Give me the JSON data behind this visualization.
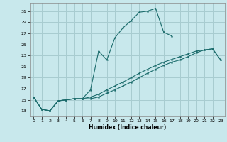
{
  "xlabel": "Humidex (Indice chaleur)",
  "xlim": [
    -0.5,
    23.5
  ],
  "ylim": [
    12.0,
    32.5
  ],
  "yticks": [
    13,
    15,
    17,
    19,
    21,
    23,
    25,
    27,
    29,
    31
  ],
  "xticks": [
    0,
    1,
    2,
    3,
    4,
    5,
    6,
    7,
    8,
    9,
    10,
    11,
    12,
    13,
    14,
    15,
    16,
    17,
    18,
    19,
    20,
    21,
    22,
    23
  ],
  "bg_color": "#c8e8ec",
  "grid_color": "#a8ccd0",
  "line_color": "#1a6b6b",
  "line1_x": [
    0,
    1,
    2,
    3,
    4,
    5,
    6,
    7,
    8,
    9,
    10,
    11,
    12,
    13,
    14,
    15,
    16,
    17,
    18,
    19,
    20,
    21,
    22,
    23
  ],
  "line1_y": [
    15.5,
    13.3,
    13.0,
    14.8,
    15.0,
    15.2,
    15.2,
    16.8,
    23.8,
    22.2,
    26.2,
    28.0,
    29.3,
    30.8,
    31.0,
    31.5,
    27.2,
    26.5,
    null,
    null,
    null,
    null,
    null,
    null
  ],
  "line2_x": [
    0,
    1,
    2,
    3,
    4,
    5,
    6,
    7,
    8,
    9,
    10,
    11,
    12,
    13,
    14,
    15,
    16,
    17,
    18,
    19,
    20,
    21,
    22,
    23
  ],
  "line2_y": [
    15.5,
    13.3,
    13.0,
    14.8,
    15.0,
    15.2,
    15.2,
    15.2,
    15.5,
    16.2,
    16.8,
    17.5,
    18.2,
    19.0,
    19.8,
    20.5,
    21.2,
    21.8,
    22.2,
    22.8,
    23.5,
    24.0,
    24.2,
    22.2
  ],
  "line3_x": [
    0,
    1,
    2,
    3,
    4,
    5,
    6,
    7,
    8,
    9,
    10,
    11,
    12,
    13,
    14,
    15,
    16,
    17,
    18,
    19,
    20,
    21,
    22,
    23
  ],
  "line3_y": [
    15.5,
    13.3,
    13.0,
    14.8,
    15.0,
    15.2,
    15.2,
    15.5,
    16.0,
    16.8,
    17.5,
    18.2,
    19.0,
    19.8,
    20.5,
    21.2,
    21.8,
    22.3,
    22.8,
    23.3,
    23.8,
    24.0,
    24.2,
    22.2
  ]
}
